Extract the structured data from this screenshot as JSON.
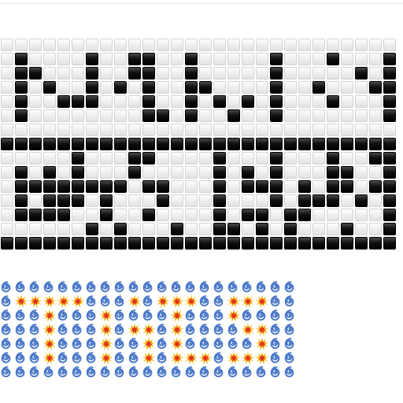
{
  "tile_grid": {
    "rows": [
      "............................",
      ".#....#..##..#.....#...#...#",
      ".##...#..##..#.....#.....#.#",
      ".#.#..#.#.#..##....#..#...##",
      ".#..###...#..#.#.#.#...#...#",
      ".#........##.#..#..#.......#",
      "............................",
      "############################",
      ".....#...##....#...#...#..##",
      ".#.#.#...#.....#.#.#...##..#",
      ".########.##...#.###.#.##.##",
      ".#.###.#...#...#...#.###.#.#",
      ".####..#..#....#.##.##.....#",
      "......#.#...#..##.#.#...#..#",
      "############################"
    ]
  },
  "emoji_grid": {
    "rows": [
      "~~~~~~~~~~~~~~~~~~~~~",
      "~*****~~~*~***~~***~~",
      "~~~*~~~*~~~~*~~~*~~~~",
      "~~~*~~~*~**~*~~~~**~~",
      "~~~*~~~*~~*~*~~~~~*~~",
      "~~~*~~~*~~*~***~***~~",
      "~~~~~~~~~~~~~~~~~~~~~"
    ]
  },
  "icons": {
    "white_tile": "white-tile",
    "black_tile": "black-tile",
    "cyclone": "cyclone-icon",
    "collision": "collision-icon"
  },
  "colors": {
    "background": "#ffffff",
    "cyclone": "#4a78c9",
    "collision_outer": "#f5c016",
    "collision_inner": "#e2301c"
  }
}
